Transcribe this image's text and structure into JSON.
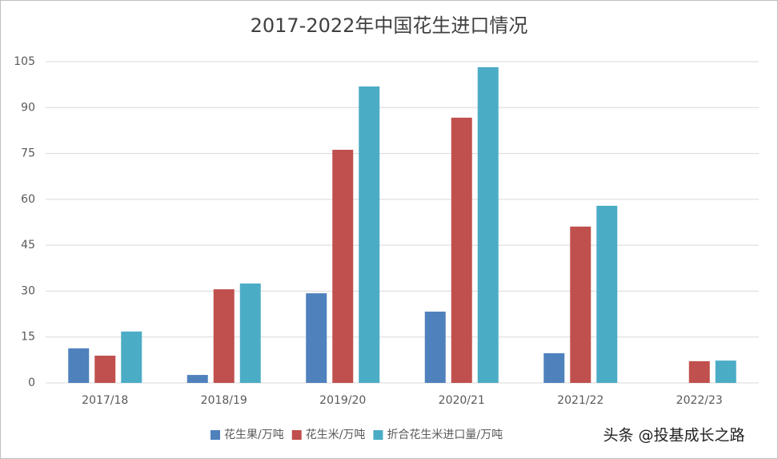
{
  "chart_data": {
    "type": "bar",
    "title": "2017-2022年中国花生进口情况",
    "categories": [
      "2017/18",
      "2018/19",
      "2019/20",
      "2020/21",
      "2021/22",
      "2022/23"
    ],
    "series": [
      {
        "name": "花生果/万吨",
        "color": "#4f81bd",
        "values": [
          11.3,
          2.6,
          29.3,
          23.3,
          9.7,
          null
        ]
      },
      {
        "name": "花生米/万吨",
        "color": "#c0504d",
        "values": [
          8.9,
          30.6,
          76.2,
          86.7,
          51.1,
          7.1
        ]
      },
      {
        "name": "折合花生米进口量/万吨",
        "color": "#4bacc6",
        "values": [
          16.8,
          32.5,
          96.9,
          103.2,
          57.9,
          7.3
        ]
      }
    ],
    "ylim": [
      0,
      105
    ],
    "yticks": [
      0,
      15,
      30,
      45,
      60,
      75,
      90,
      105
    ],
    "grid": true,
    "legend": "bottom",
    "watermark": "头条 @投基成长之路"
  }
}
